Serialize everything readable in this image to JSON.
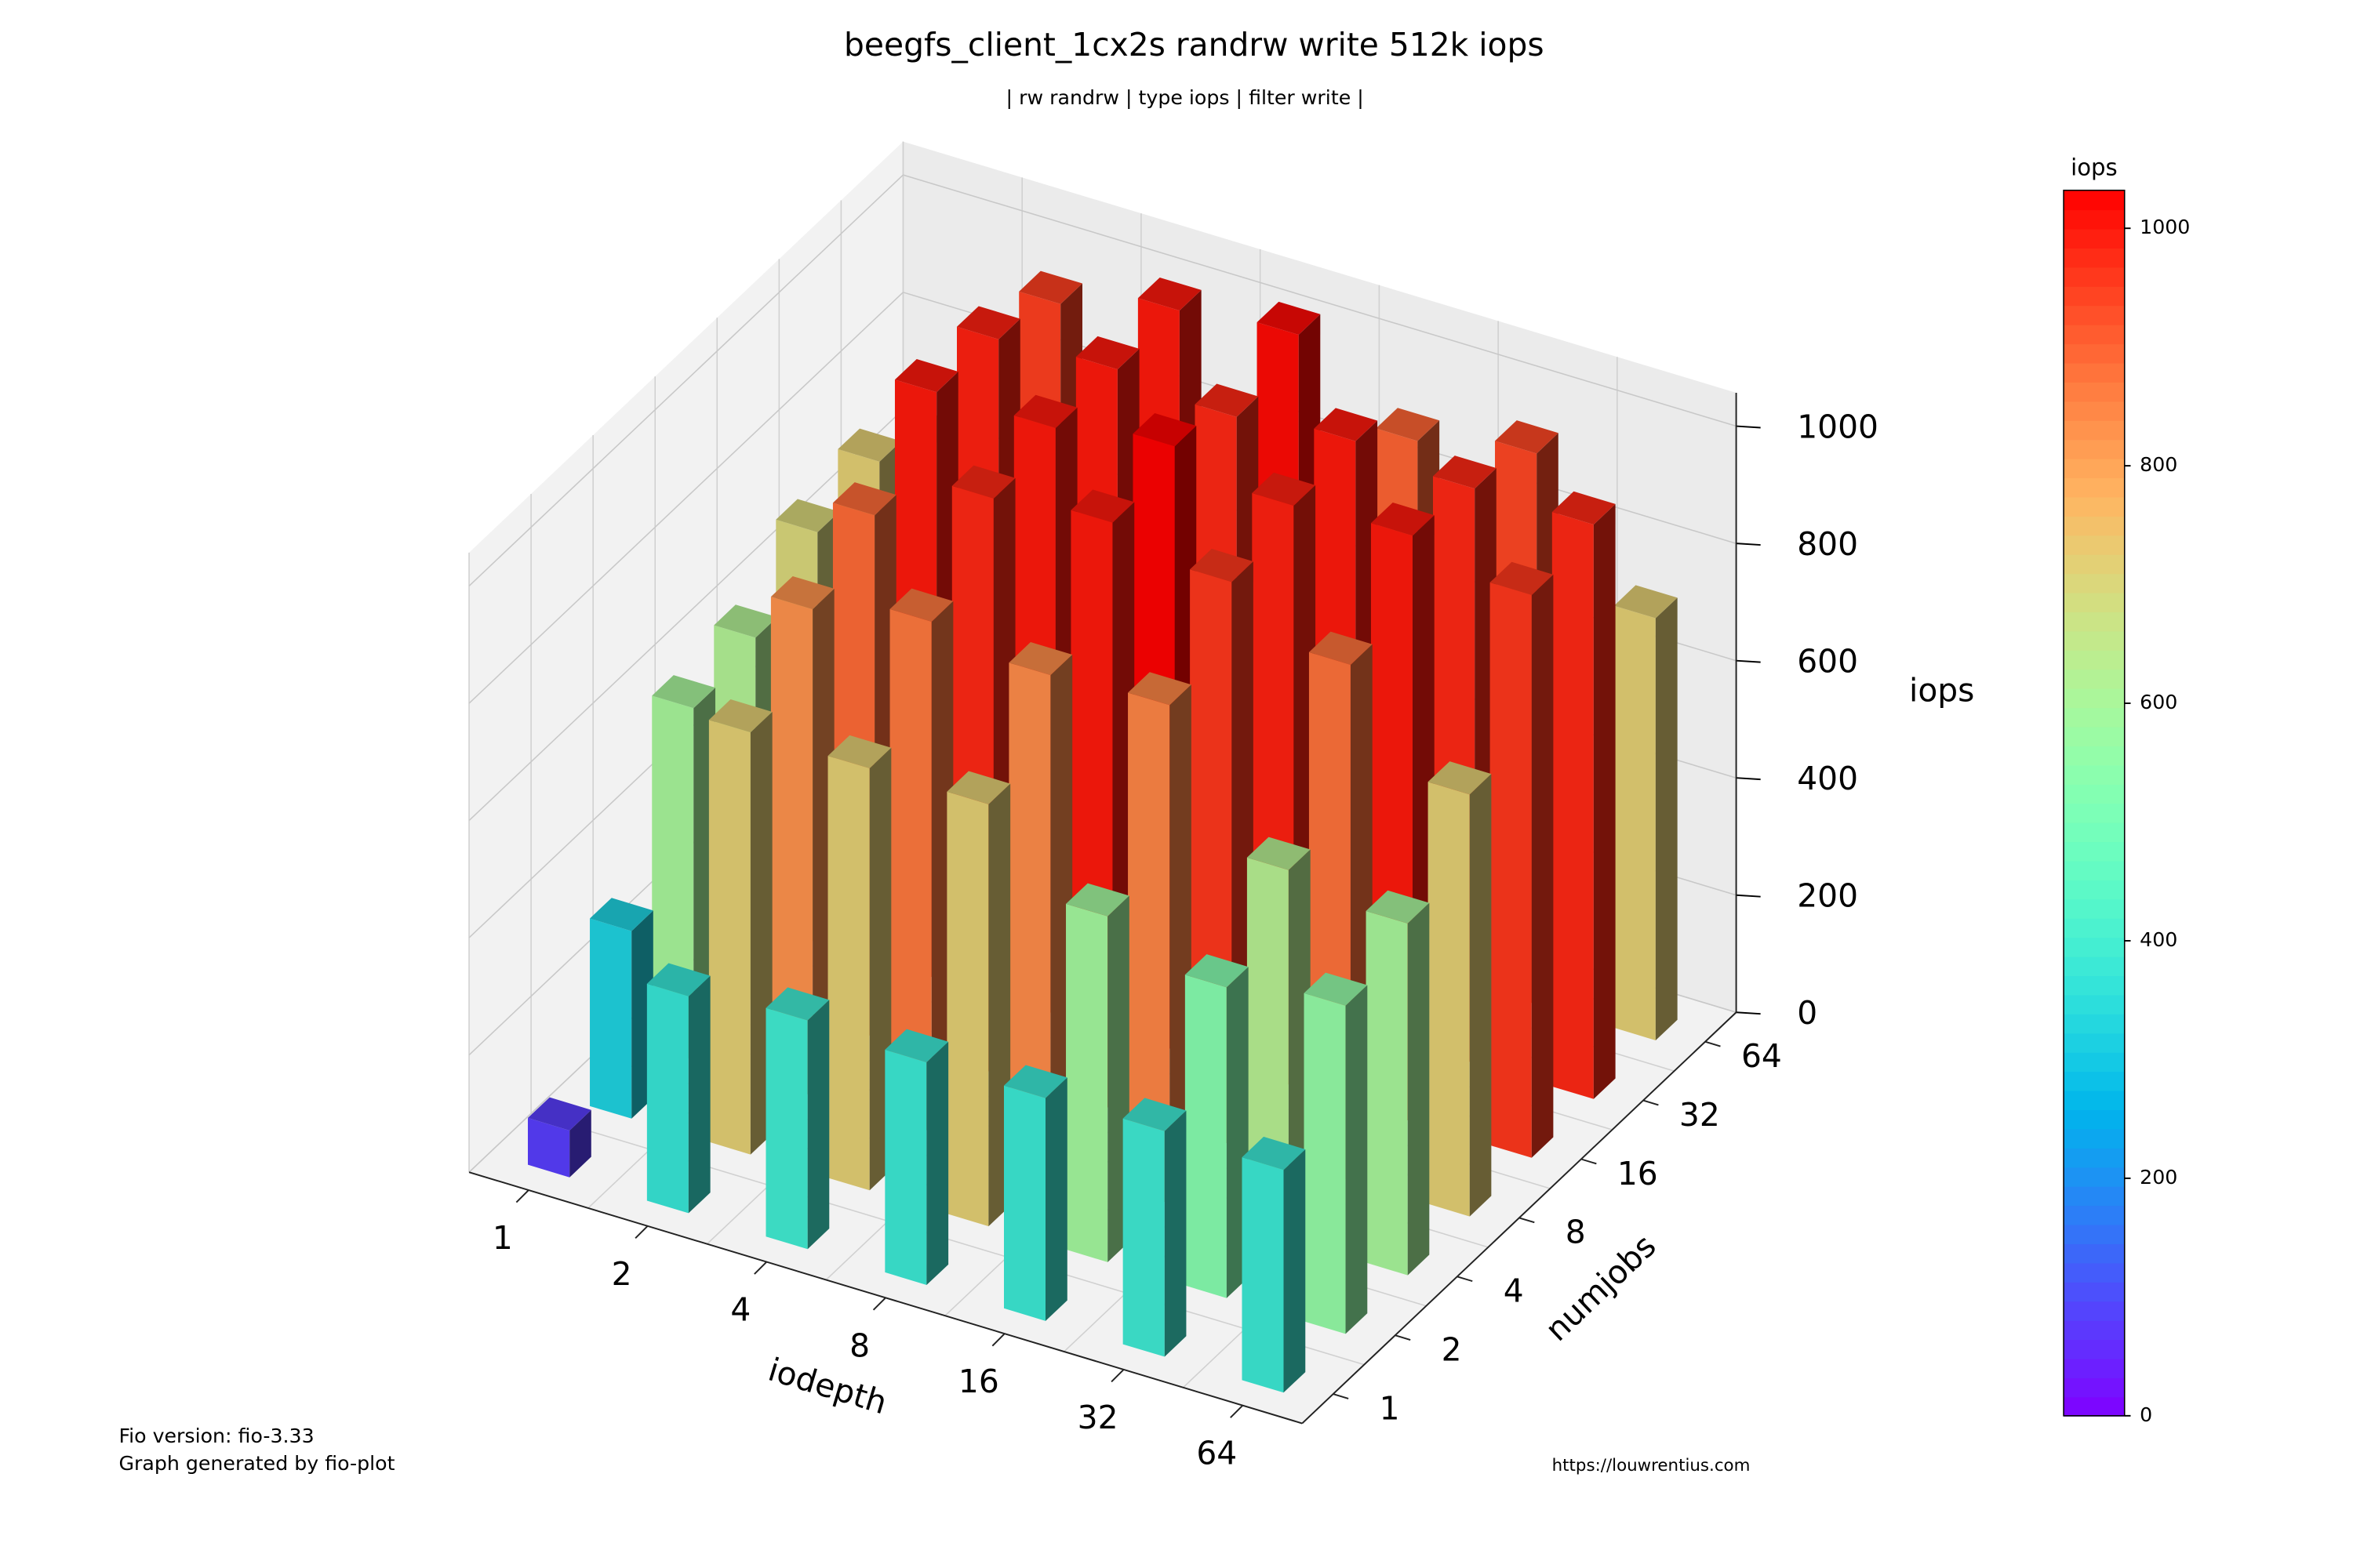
{
  "chart_data": {
    "type": "bar3d",
    "title": "beegfs_client_1cx2s randrw write 512k iops",
    "subtitle": "| rw randrw | type iops | filter write |",
    "x_label": "iodepth",
    "y_label": "numjobs",
    "z_label": "iops",
    "x_categories": [
      "1",
      "2",
      "4",
      "8",
      "16",
      "32",
      "64"
    ],
    "y_categories": [
      "1",
      "2",
      "4",
      "8",
      "16",
      "32",
      "64"
    ],
    "values": [
      [
        80,
        370,
        390,
        380,
        380,
        385,
        380
      ],
      [
        320,
        720,
        720,
        720,
        590,
        530,
        560
      ],
      [
        600,
        830,
        870,
        840,
        850,
        630,
        600
      ],
      [
        620,
        890,
        980,
        1000,
        960,
        880,
        720
      ],
      [
        700,
        1000,
        1000,
        1030,
        990,
        1000,
        960
      ],
      [
        720,
        990,
        1000,
        980,
        1000,
        980,
        980
      ],
      [
        650,
        950,
        1000,
        1020,
        900,
        940,
        720
      ]
    ],
    "zlim": [
      0,
      1057
    ],
    "zticks": [
      0,
      200,
      400,
      600,
      800,
      1000
    ],
    "grid": true,
    "colormap": "rainbow",
    "colorbar": {
      "label": "iops",
      "lim": [
        0,
        1032
      ],
      "ticks": [
        0,
        200,
        400,
        600,
        800,
        1000
      ]
    }
  },
  "footer": {
    "left": [
      "Fio version: fio-3.33",
      "Graph generated by fio-plot"
    ],
    "right": "https://louwrentius.com"
  }
}
